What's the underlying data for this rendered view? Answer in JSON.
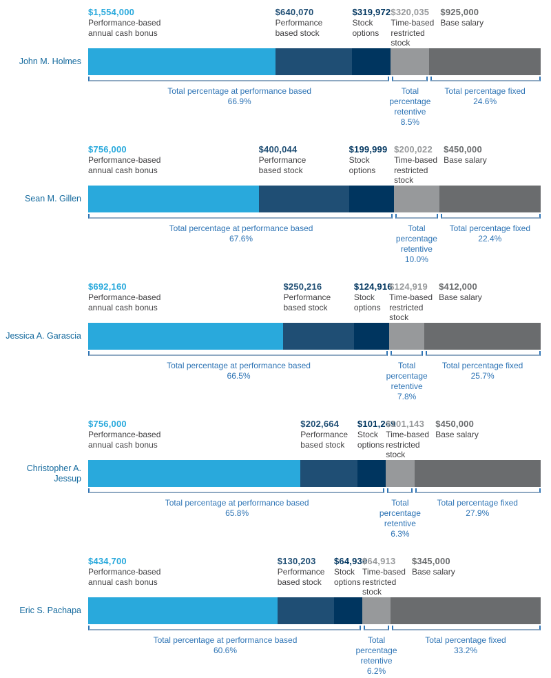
{
  "colors": {
    "cash_bonus": "#29A9DC",
    "performance_stock": "#1F4E74",
    "stock_options": "#00355F",
    "restricted_stock": "#97999B",
    "base_salary": "#6A6C6E",
    "annotation_blue": "#2E74B5",
    "name_blue": "#13699D",
    "desc_text": "#414042",
    "bracket_line": "#8FA9C2",
    "bracket_tick": "#2E74B5"
  },
  "chart_data": {
    "type": "bar",
    "orientation": "horizontal-stacked",
    "unit": "USD",
    "legend_position": "none",
    "grid": false,
    "categories": [
      "John M. Holmes",
      "Sean M. Gillen",
      "Jessica A. Garascia",
      "Christopher A. Jessup",
      "Eric S. Pachapa"
    ],
    "series": [
      {
        "name": "Performance-based annual cash bonus",
        "color": "#29A9DC",
        "values": [
          1554000,
          756000,
          692160,
          756000,
          434700
        ],
        "display": [
          "$1,554,000",
          "$756,000",
          "$692,160",
          "$756,000",
          "$434,700"
        ]
      },
      {
        "name": "Performance based stock",
        "color": "#1F4E74",
        "values": [
          640070,
          400044,
          250216,
          202664,
          130203
        ],
        "display": [
          "$640,070",
          "$400,044",
          "$250,216",
          "$202,664",
          "$130,203"
        ]
      },
      {
        "name": "Stock options",
        "color": "#00355F",
        "values": [
          319972,
          199999,
          124916,
          101269,
          64930
        ],
        "display": [
          "$319,972",
          "$199,999",
          "$124,916",
          "$101,269",
          "$64,930"
        ]
      },
      {
        "name": "Time-based restricted stock",
        "color": "#97999B",
        "values": [
          320035,
          200022,
          124919,
          101143,
          64913
        ],
        "display": [
          "$320,035",
          "$200,022",
          "$124,919",
          "$101,143",
          "$64,913"
        ]
      },
      {
        "name": "Base salary",
        "color": "#6A6C6E",
        "values": [
          925000,
          450000,
          412000,
          450000,
          345000
        ],
        "display": [
          "$925,000",
          "$450,000",
          "$412,000",
          "$450,000",
          "$345,000"
        ]
      }
    ],
    "annotations": {
      "performance_label": "Total percentage at performance based",
      "retentive_label_lines": [
        "Total",
        "percentage",
        "retentive"
      ],
      "fixed_label": "Total percentage fixed",
      "performance_pct": [
        "66.9%",
        "67.6%",
        "66.5%",
        "65.8%",
        "60.6%"
      ],
      "retentive_pct": [
        "8.5%",
        "10.0%",
        "7.8%",
        "6.3%",
        "6.2%"
      ],
      "fixed_pct": [
        "24.6%",
        "22.4%",
        "25.7%",
        "27.9%",
        "33.2%"
      ]
    }
  }
}
